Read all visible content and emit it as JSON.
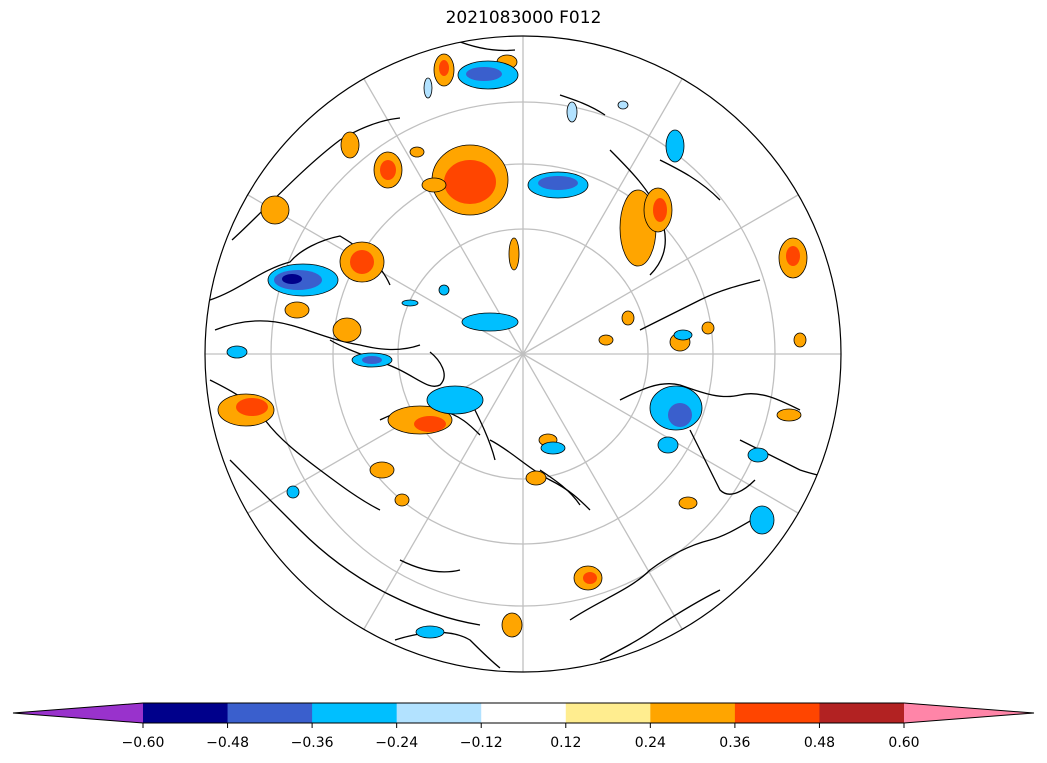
{
  "title": "2021083000 F012",
  "colors": {
    "under": "#9932cc",
    "over": "#ff85a8",
    "bins": [
      "#00008b",
      "#3a5fcd",
      "#00bfff",
      "#b2e2ff",
      "#ffffff",
      "#ffed8f",
      "#ffa500",
      "#ff4500",
      "#b22222"
    ]
  },
  "colorbar": {
    "boundaries": [
      -0.6,
      -0.48,
      -0.36,
      -0.24,
      -0.12,
      0.12,
      0.24,
      0.36,
      0.48,
      0.6
    ],
    "tick_labels": [
      "−0.60",
      "−0.48",
      "−0.36",
      "−0.24",
      "−0.12",
      "0.12",
      "0.24",
      "0.36",
      "0.48",
      "0.60"
    ],
    "extend": "both"
  }
}
